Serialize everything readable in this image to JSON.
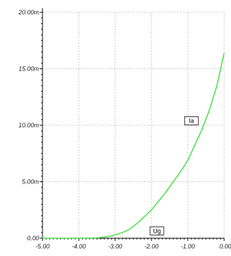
{
  "chart_data": {
    "type": "line",
    "title": "",
    "xlabel": "",
    "ylabel": "",
    "xlim": [
      -5.0,
      0.0
    ],
    "ylim": [
      0.0,
      0.02
    ],
    "grid": true,
    "x_ticks": [
      -5.0,
      -4.0,
      -3.0,
      -2.0,
      -1.0,
      0.0
    ],
    "x_tick_labels": [
      "-5.00",
      "-4.00",
      "-3.00",
      "-2.00",
      "-1.00",
      "0.00"
    ],
    "y_ticks": [
      0.0,
      0.005,
      0.01,
      0.015,
      0.02
    ],
    "y_tick_labels": [
      "0.00",
      "5.00m",
      "10.00m",
      "15.00m",
      "20.00m"
    ],
    "series": [
      {
        "name": "Ia",
        "color": "#4fe04f",
        "x": [
          -5.0,
          -4.0,
          -3.5,
          -3.3,
          -3.1,
          -3.0,
          -2.8,
          -2.6,
          -2.4,
          -2.2,
          -2.0,
          -1.8,
          -1.6,
          -1.4,
          -1.2,
          -1.0,
          -0.8,
          -0.6,
          -0.4,
          -0.2,
          0.0
        ],
        "y": [
          0.0,
          0.0,
          3e-05,
          0.0001,
          0.0002,
          0.0003,
          0.0005,
          0.0008,
          0.0013,
          0.0019,
          0.0025,
          0.0033,
          0.0041,
          0.005,
          0.0059,
          0.0069,
          0.0083,
          0.0097,
          0.0114,
          0.0135,
          0.0164
        ]
      }
    ],
    "annotations": [
      {
        "text": "Ia",
        "x": -0.9,
        "y": 0.0104
      },
      {
        "text": "Ug",
        "x": -1.85,
        "y": 0.00065
      }
    ]
  }
}
